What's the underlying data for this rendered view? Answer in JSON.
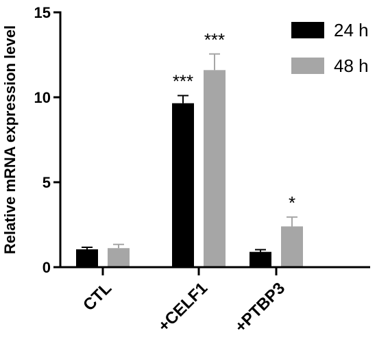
{
  "chart_data": {
    "type": "bar",
    "ylabel": "Relative mRNA expression level",
    "xlabel": "",
    "ylim": [
      0,
      15
    ],
    "yticks": [
      0,
      5,
      10,
      15
    ],
    "categories": [
      "CTL",
      "+CELF1",
      "+PTBP3"
    ],
    "series": [
      {
        "name": "24 h",
        "color": "#000000",
        "values": [
          1.05,
          9.65,
          0.9
        ],
        "errors": [
          0.12,
          0.45,
          0.13
        ],
        "significance": [
          "",
          "***",
          ""
        ]
      },
      {
        "name": "48 h",
        "color": "#a6a6a6",
        "values": [
          1.12,
          11.6,
          2.4
        ],
        "errors": [
          0.22,
          0.95,
          0.55
        ],
        "significance": [
          "",
          "***",
          "*"
        ]
      }
    ],
    "legend_position": "top-right",
    "grid": false
  }
}
